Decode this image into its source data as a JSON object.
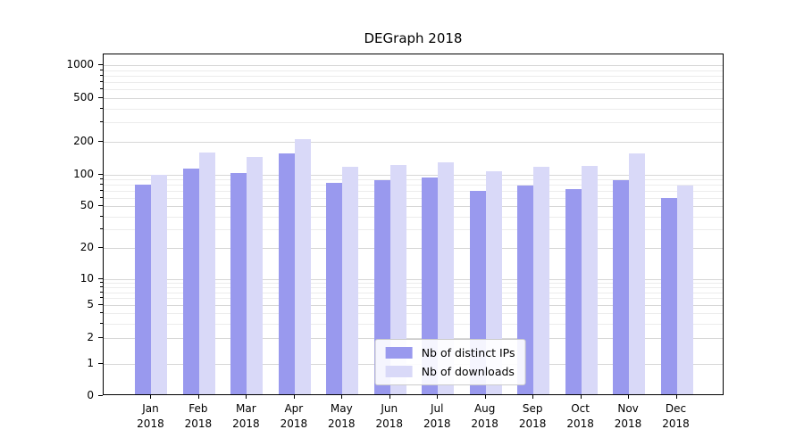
{
  "title": "DEGraph 2018",
  "chart_data": {
    "type": "bar",
    "title": "DEGraph 2018",
    "categories": [
      "Jan",
      "Feb",
      "Mar",
      "Apr",
      "May",
      "Jun",
      "Jul",
      "Aug",
      "Sep",
      "Oct",
      "Nov",
      "Dec"
    ],
    "category_year": "2018",
    "series": [
      {
        "name": "Nb of distinct IPs",
        "color": "#9999ee",
        "values": [
          78,
          110,
          100,
          150,
          80,
          85,
          90,
          67,
          76,
          70,
          86,
          58
        ]
      },
      {
        "name": "Nb of downloads",
        "color": "#d9d9f8",
        "values": [
          97,
          155,
          140,
          205,
          113,
          118,
          126,
          104,
          114,
          116,
          150,
          76
        ]
      }
    ],
    "yscale": "symlog",
    "yticks": [
      0,
      1,
      2,
      5,
      10,
      20,
      50,
      100,
      200,
      500,
      1000
    ],
    "ylim": [
      0,
      1400
    ],
    "grid": true,
    "legend_position": "lower center",
    "xlabel": "",
    "ylabel": ""
  }
}
